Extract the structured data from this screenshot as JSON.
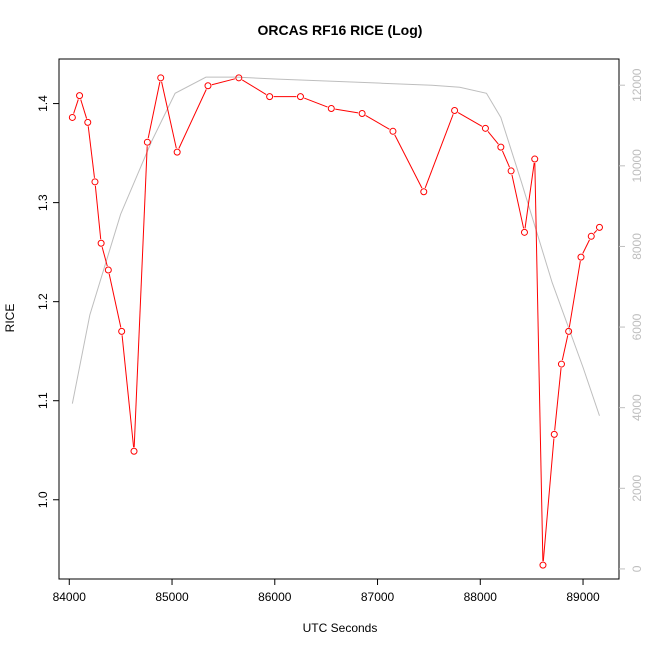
{
  "chart_data": {
    "type": "line",
    "title": "ORCAS RF16 RICE (Log)",
    "xlabel": "UTC Seconds",
    "ylabel": "RICE",
    "xlim": [
      83900,
      89350
    ],
    "ylim": [
      0.92,
      1.445
    ],
    "y2lim": [
      -250,
      12650
    ],
    "x_ticks": [
      84000,
      85000,
      86000,
      87000,
      88000,
      89000
    ],
    "y_ticks": [
      1.0,
      1.1,
      1.2,
      1.3,
      1.4
    ],
    "y_tick_labels": [
      "1.0",
      "1.1",
      "1.2",
      "1.3",
      "1.4"
    ],
    "y2_ticks": [
      0,
      2000,
      4000,
      6000,
      8000,
      10000,
      12000
    ],
    "grid": false,
    "colors": {
      "rice": "#ff0000",
      "altitude": "#bebebe"
    },
    "series": [
      {
        "axis": "left",
        "style": "line-with-open-circles",
        "x": [
          84030,
          84100,
          84180,
          84250,
          84310,
          84380,
          84510,
          84630,
          84760,
          84890,
          85050,
          85350,
          85650,
          85950,
          86250,
          86550,
          86850,
          87150,
          87450,
          87750,
          88050,
          88200,
          88300,
          88430,
          88530,
          88610,
          88720,
          88790,
          88860,
          88980,
          89080,
          89160
        ],
        "y": [
          1.386,
          1.408,
          1.381,
          1.321,
          1.259,
          1.232,
          1.17,
          1.049,
          1.361,
          1.426,
          1.351,
          1.418,
          1.426,
          1.407,
          1.407,
          1.395,
          1.39,
          1.372,
          1.311,
          1.393,
          1.375,
          1.356,
          1.332,
          1.27,
          1.344,
          0.934,
          1.066,
          1.137,
          1.17,
          1.245,
          1.266,
          1.275
        ]
      },
      {
        "axis": "right",
        "style": "line",
        "x": [
          84030,
          84200,
          84500,
          84800,
          85030,
          85330,
          85630,
          86030,
          86530,
          87030,
          87530,
          87800,
          88060,
          88200,
          88400,
          88700,
          89000,
          89160
        ],
        "y": [
          4100,
          6300,
          8800,
          10600,
          11800,
          12200,
          12200,
          12150,
          12100,
          12050,
          12000,
          11950,
          11800,
          11200,
          9600,
          7100,
          5000,
          3800
        ]
      }
    ]
  }
}
